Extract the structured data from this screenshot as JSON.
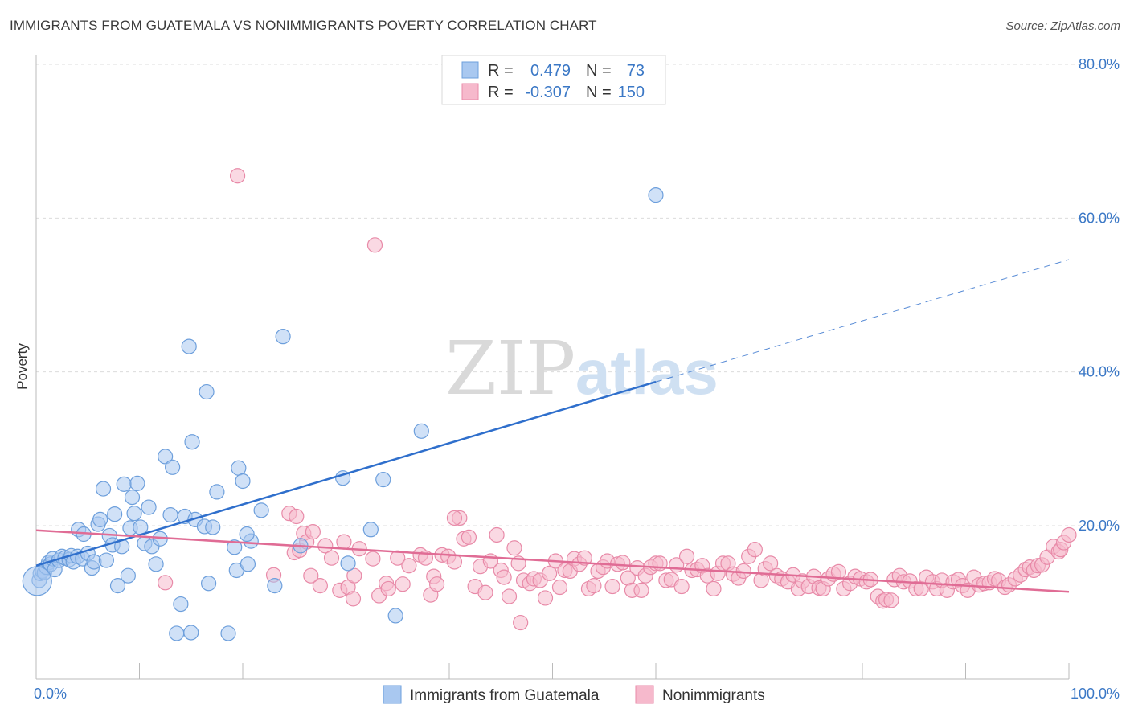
{
  "header": {
    "title": "IMMIGRANTS FROM GUATEMALA VS NONIMMIGRANTS POVERTY CORRELATION CHART",
    "source": "Source: ZipAtlas.com"
  },
  "watermark": {
    "zip": "ZIP",
    "atlas": "atlas"
  },
  "legend_box": {
    "r_label": "R =",
    "n_label": "N =",
    "rows": [
      {
        "r": "0.479",
        "n": "73",
        "color": "#a9c8f0",
        "stroke": "#6d9fdc"
      },
      {
        "r": "-0.307",
        "n": "150",
        "color": "#f6b9cc",
        "stroke": "#e88aa8"
      }
    ]
  },
  "chart_data": {
    "type": "scatter",
    "xlabel": "",
    "ylabel": "Poverty",
    "xlim": [
      0,
      100
    ],
    "ylim": [
      0,
      85
    ],
    "x_tick_labels": [
      "0.0%",
      "100.0%"
    ],
    "y_ticks": [
      20,
      40,
      60,
      80
    ],
    "y_tick_labels": [
      "20.0%",
      "40.0%",
      "60.0%",
      "80.0%"
    ],
    "grid": true,
    "legend_position": "bottom",
    "series": [
      {
        "name": "Immigrants from Guatemala",
        "color": "#a9c8f0",
        "stroke": "#6d9fdc",
        "line_color": "#2f6fcc",
        "trend": {
          "x0": 0,
          "y0": 14.8,
          "x1": 60,
          "y1": 38.7,
          "dash_to_x": 100,
          "dash_to_y": 54.6
        },
        "points": [
          [
            0.3,
            12.9
          ],
          [
            0.4,
            13.8
          ],
          [
            0.6,
            14.1
          ],
          [
            0.8,
            13.9
          ],
          [
            1.0,
            14.6
          ],
          [
            1.2,
            15.2
          ],
          [
            1.4,
            15.0
          ],
          [
            1.6,
            15.7
          ],
          [
            1.8,
            14.3
          ],
          [
            2.2,
            15.5
          ],
          [
            2.5,
            16.0
          ],
          [
            2.8,
            15.8
          ],
          [
            3.2,
            15.6
          ],
          [
            3.4,
            16.1
          ],
          [
            3.6,
            15.3
          ],
          [
            4.0,
            16.0
          ],
          [
            4.1,
            19.5
          ],
          [
            4.5,
            15.7
          ],
          [
            4.6,
            18.9
          ],
          [
            5.0,
            16.4
          ],
          [
            5.4,
            14.5
          ],
          [
            5.6,
            15.3
          ],
          [
            6.0,
            20.2
          ],
          [
            6.2,
            20.8
          ],
          [
            6.5,
            24.8
          ],
          [
            6.8,
            15.5
          ],
          [
            7.1,
            18.7
          ],
          [
            7.4,
            17.5
          ],
          [
            7.6,
            21.5
          ],
          [
            7.9,
            12.2
          ],
          [
            8.3,
            17.3
          ],
          [
            8.5,
            25.4
          ],
          [
            8.9,
            13.5
          ],
          [
            9.1,
            19.7
          ],
          [
            9.3,
            23.7
          ],
          [
            9.5,
            21.6
          ],
          [
            9.8,
            25.5
          ],
          [
            10.1,
            19.8
          ],
          [
            10.5,
            17.7
          ],
          [
            10.9,
            22.4
          ],
          [
            11.2,
            17.3
          ],
          [
            11.6,
            15.0
          ],
          [
            12.0,
            18.3
          ],
          [
            12.5,
            29.0
          ],
          [
            13.0,
            21.4
          ],
          [
            13.2,
            27.6
          ],
          [
            13.6,
            6.0
          ],
          [
            14.0,
            9.8
          ],
          [
            14.4,
            21.2
          ],
          [
            14.8,
            43.3
          ],
          [
            15.0,
            6.1
          ],
          [
            15.1,
            30.9
          ],
          [
            15.4,
            20.8
          ],
          [
            16.3,
            19.9
          ],
          [
            16.5,
            37.4
          ],
          [
            16.7,
            12.5
          ],
          [
            17.1,
            19.8
          ],
          [
            17.5,
            24.4
          ],
          [
            18.6,
            6.0
          ],
          [
            19.2,
            17.2
          ],
          [
            19.4,
            14.2
          ],
          [
            19.6,
            27.5
          ],
          [
            20.0,
            25.8
          ],
          [
            20.5,
            15.0
          ],
          [
            20.8,
            18.0
          ],
          [
            21.8,
            22.0
          ],
          [
            23.1,
            12.2
          ],
          [
            23.9,
            44.6
          ],
          [
            25.6,
            17.4
          ],
          [
            29.7,
            26.2
          ],
          [
            30.2,
            15.1
          ],
          [
            32.4,
            19.5
          ],
          [
            33.6,
            26.0
          ],
          [
            34.8,
            8.3
          ],
          [
            37.3,
            32.3
          ],
          [
            60.0,
            63.0
          ],
          [
            20.4,
            18.9
          ]
        ]
      },
      {
        "name": "Nonimmigrants",
        "color": "#f6b9cc",
        "stroke": "#e88aa8",
        "line_color": "#e06c95",
        "trend": {
          "x0": 0,
          "y0": 19.4,
          "x1": 100,
          "y1": 11.4
        },
        "points": [
          [
            12.5,
            12.6
          ],
          [
            19.5,
            65.5
          ],
          [
            23.0,
            13.6
          ],
          [
            24.5,
            21.6
          ],
          [
            25.0,
            16.5
          ],
          [
            25.5,
            16.8
          ],
          [
            25.9,
            19.0
          ],
          [
            26.2,
            17.9
          ],
          [
            26.8,
            19.2
          ],
          [
            27.5,
            12.2
          ],
          [
            28.0,
            17.4
          ],
          [
            28.6,
            15.8
          ],
          [
            29.4,
            11.6
          ],
          [
            29.8,
            17.9
          ],
          [
            30.2,
            12.0
          ],
          [
            30.8,
            13.5
          ],
          [
            31.3,
            17.0
          ],
          [
            32.6,
            15.7
          ],
          [
            33.2,
            10.9
          ],
          [
            33.9,
            12.5
          ],
          [
            34.1,
            11.8
          ],
          [
            35.0,
            15.8
          ],
          [
            35.5,
            12.4
          ],
          [
            36.1,
            14.8
          ],
          [
            37.2,
            16.2
          ],
          [
            37.7,
            15.8
          ],
          [
            38.2,
            11.0
          ],
          [
            38.5,
            13.4
          ],
          [
            38.8,
            12.4
          ],
          [
            39.3,
            16.2
          ],
          [
            39.9,
            16.0
          ],
          [
            40.5,
            15.3
          ],
          [
            41.0,
            21.0
          ],
          [
            41.4,
            18.3
          ],
          [
            41.9,
            18.5
          ],
          [
            42.5,
            12.1
          ],
          [
            43.0,
            14.7
          ],
          [
            43.5,
            11.3
          ],
          [
            44.0,
            15.4
          ],
          [
            44.6,
            18.8
          ],
          [
            45.0,
            14.2
          ],
          [
            45.3,
            13.3
          ],
          [
            45.8,
            10.8
          ],
          [
            46.3,
            17.1
          ],
          [
            46.7,
            15.1
          ],
          [
            47.2,
            12.9
          ],
          [
            47.8,
            12.5
          ],
          [
            48.2,
            13.1
          ],
          [
            48.8,
            12.9
          ],
          [
            49.3,
            10.6
          ],
          [
            49.7,
            13.8
          ],
          [
            50.3,
            15.4
          ],
          [
            50.7,
            12.0
          ],
          [
            51.2,
            14.2
          ],
          [
            51.7,
            14.1
          ],
          [
            52.1,
            15.7
          ],
          [
            52.6,
            15.0
          ],
          [
            53.1,
            15.8
          ],
          [
            53.5,
            11.8
          ],
          [
            54.0,
            12.2
          ],
          [
            54.4,
            14.1
          ],
          [
            54.9,
            14.6
          ],
          [
            55.3,
            15.4
          ],
          [
            55.8,
            12.1
          ],
          [
            56.3,
            15.0
          ],
          [
            56.8,
            15.2
          ],
          [
            57.3,
            13.2
          ],
          [
            57.7,
            11.6
          ],
          [
            58.2,
            14.5
          ],
          [
            58.6,
            11.6
          ],
          [
            59.0,
            13.5
          ],
          [
            59.5,
            14.6
          ],
          [
            60.0,
            15.1
          ],
          [
            60.4,
            15.1
          ],
          [
            61.0,
            12.9
          ],
          [
            61.5,
            13.0
          ],
          [
            62.0,
            14.9
          ],
          [
            62.5,
            12.1
          ],
          [
            63.0,
            16.0
          ],
          [
            63.5,
            14.2
          ],
          [
            64.0,
            14.3
          ],
          [
            64.5,
            14.8
          ],
          [
            65.0,
            13.5
          ],
          [
            65.6,
            11.8
          ],
          [
            66.0,
            13.8
          ],
          [
            66.5,
            15.1
          ],
          [
            67.0,
            15.1
          ],
          [
            67.5,
            13.7
          ],
          [
            68.0,
            13.2
          ],
          [
            68.5,
            14.1
          ],
          [
            69.0,
            16.0
          ],
          [
            69.6,
            16.9
          ],
          [
            70.2,
            12.9
          ],
          [
            70.6,
            14.4
          ],
          [
            71.1,
            15.1
          ],
          [
            71.7,
            13.5
          ],
          [
            72.2,
            13.1
          ],
          [
            72.8,
            12.7
          ],
          [
            73.3,
            13.6
          ],
          [
            73.8,
            11.8
          ],
          [
            74.2,
            12.8
          ],
          [
            74.8,
            12.1
          ],
          [
            75.3,
            13.4
          ],
          [
            75.8,
            11.9
          ],
          [
            76.2,
            11.8
          ],
          [
            76.7,
            13.1
          ],
          [
            77.2,
            13.7
          ],
          [
            77.7,
            14.0
          ],
          [
            78.2,
            11.8
          ],
          [
            78.8,
            12.5
          ],
          [
            79.3,
            13.4
          ],
          [
            79.8,
            13.1
          ],
          [
            80.4,
            12.7
          ],
          [
            80.8,
            13.0
          ],
          [
            81.5,
            10.8
          ],
          [
            82.0,
            10.2
          ],
          [
            82.3,
            10.4
          ],
          [
            82.8,
            10.3
          ],
          [
            83.1,
            13.0
          ],
          [
            83.6,
            13.5
          ],
          [
            84.0,
            12.7
          ],
          [
            84.6,
            12.8
          ],
          [
            85.2,
            11.8
          ],
          [
            85.7,
            11.8
          ],
          [
            86.2,
            13.3
          ],
          [
            86.8,
            12.7
          ],
          [
            87.2,
            11.8
          ],
          [
            87.7,
            12.9
          ],
          [
            88.2,
            11.6
          ],
          [
            88.8,
            12.7
          ],
          [
            89.3,
            13.0
          ],
          [
            89.7,
            12.2
          ],
          [
            90.2,
            11.6
          ],
          [
            90.8,
            13.3
          ],
          [
            91.3,
            12.3
          ],
          [
            91.8,
            12.5
          ],
          [
            92.3,
            12.6
          ],
          [
            92.8,
            13.1
          ],
          [
            93.2,
            12.9
          ],
          [
            93.8,
            12.0
          ],
          [
            94.2,
            12.3
          ],
          [
            94.8,
            13.1
          ],
          [
            95.3,
            13.6
          ],
          [
            95.8,
            14.3
          ],
          [
            96.2,
            14.6
          ],
          [
            96.6,
            14.2
          ],
          [
            97.0,
            14.8
          ],
          [
            97.4,
            14.9
          ],
          [
            97.9,
            15.9
          ],
          [
            98.5,
            17.3
          ],
          [
            99.0,
            16.6
          ],
          [
            99.2,
            16.9
          ],
          [
            99.5,
            17.8
          ],
          [
            100.0,
            18.8
          ],
          [
            32.8,
            56.5
          ],
          [
            26.6,
            13.5
          ],
          [
            25.2,
            21.2
          ],
          [
            40.5,
            21.0
          ],
          [
            46.9,
            7.4
          ],
          [
            30.7,
            10.5
          ]
        ]
      }
    ]
  }
}
